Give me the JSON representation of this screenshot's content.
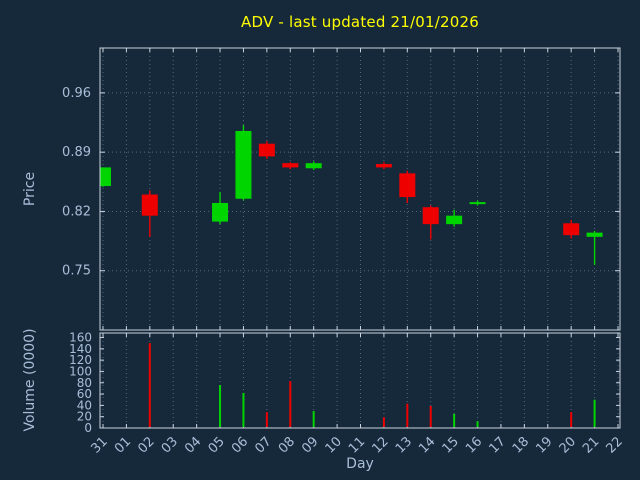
{
  "chart_data": {
    "type": "candlestick",
    "title": "ADV - last updated 21/01/2026",
    "xlabel": "Day",
    "ylabel_price": "Price",
    "ylabel_volume": "Volume (0000)",
    "x_categories": [
      "31",
      "01",
      "02",
      "03",
      "04",
      "05",
      "06",
      "07",
      "08",
      "09",
      "10",
      "11",
      "12",
      "13",
      "14",
      "15",
      "16",
      "17",
      "18",
      "19",
      "20",
      "21",
      "22"
    ],
    "price_ticks": [
      0.75,
      0.82,
      0.89,
      0.96
    ],
    "price_range": [
      0.68,
      1.013
    ],
    "volume_ticks": [
      0,
      20,
      40,
      60,
      80,
      100,
      120,
      140,
      160
    ],
    "volume_range": [
      0,
      168
    ],
    "legend": "none",
    "grid": "dotted",
    "candles": [
      {
        "day": "31",
        "open": 0.85,
        "high": 0.872,
        "low": 0.849,
        "close": 0.872,
        "color": "up",
        "volume": 0
      },
      {
        "day": "02",
        "open": 0.84,
        "high": 0.845,
        "low": 0.79,
        "close": 0.815,
        "color": "down",
        "volume": 150
      },
      {
        "day": "05",
        "open": 0.808,
        "high": 0.843,
        "low": 0.805,
        "close": 0.83,
        "color": "up",
        "volume": 76
      },
      {
        "day": "06",
        "open": 0.835,
        "high": 0.922,
        "low": 0.833,
        "close": 0.915,
        "color": "up",
        "volume": 62
      },
      {
        "day": "07",
        "open": 0.9,
        "high": 0.903,
        "low": 0.882,
        "close": 0.885,
        "color": "down",
        "volume": 28
      },
      {
        "day": "08",
        "open": 0.877,
        "high": 0.878,
        "low": 0.87,
        "close": 0.872,
        "color": "down",
        "volume": 83
      },
      {
        "day": "09",
        "open": 0.871,
        "high": 0.879,
        "low": 0.869,
        "close": 0.877,
        "color": "up",
        "volume": 30
      },
      {
        "day": "12",
        "open": 0.876,
        "high": 0.878,
        "low": 0.87,
        "close": 0.872,
        "color": "down",
        "volume": 19
      },
      {
        "day": "13",
        "open": 0.865,
        "high": 0.868,
        "low": 0.83,
        "close": 0.837,
        "color": "down",
        "volume": 43
      },
      {
        "day": "14",
        "open": 0.825,
        "high": 0.827,
        "low": 0.787,
        "close": 0.805,
        "color": "down",
        "volume": 39
      },
      {
        "day": "15",
        "open": 0.805,
        "high": 0.822,
        "low": 0.802,
        "close": 0.815,
        "color": "up",
        "volume": 25
      },
      {
        "day": "16",
        "open": 0.83,
        "high": 0.833,
        "low": 0.827,
        "close": 0.831,
        "color": "up",
        "volume": 12
      },
      {
        "day": "20",
        "open": 0.806,
        "high": 0.81,
        "low": 0.788,
        "close": 0.792,
        "color": "down",
        "volume": 28
      },
      {
        "day": "21",
        "open": 0.79,
        "high": 0.797,
        "low": 0.757,
        "close": 0.795,
        "color": "up",
        "volume": 50
      }
    ],
    "colors": {
      "up": "#00d500",
      "down": "#ee0000",
      "grid": "#53677e",
      "frame": "#c9d4df",
      "text": "#a9bed8",
      "title": "#ffff00",
      "background": "#16293a"
    }
  }
}
